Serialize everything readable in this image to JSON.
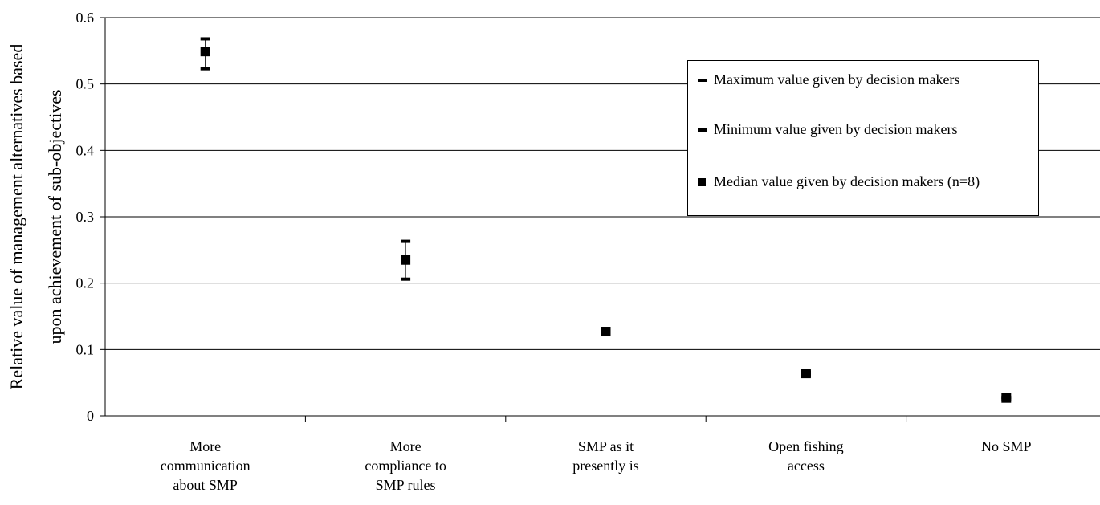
{
  "chart_data": {
    "type": "scatter",
    "title": "",
    "xlabel": "",
    "ylabel": [
      "Relative value of management alternatives based",
      "upon achievement of sub-objectives"
    ],
    "ylim": [
      0,
      0.6
    ],
    "yticks": [
      0,
      0.1,
      0.2,
      0.3,
      0.4,
      0.5,
      0.6
    ],
    "ytick_labels": [
      "0",
      "0.1",
      "0.2",
      "0.3",
      "0.4",
      "0.5",
      "0.6"
    ],
    "grid": true,
    "legend_position": "top-right",
    "categories": [
      "More communication about SMP",
      "More compliance to SMP rules",
      "SMP as it presently is",
      "Open fishing access",
      "No SMP"
    ],
    "category_label_lines": [
      [
        "More",
        "communication",
        "about SMP"
      ],
      [
        "More",
        "compliance to",
        "SMP rules"
      ],
      [
        "SMP as it",
        "presently is"
      ],
      [
        "Open fishing",
        "access"
      ],
      [
        "No SMP"
      ]
    ],
    "series": [
      {
        "name": "Maximum value given by decision makers",
        "values": [
          0.568,
          0.263,
          0.131,
          0.066,
          0.028
        ]
      },
      {
        "name": "Minimum value given by decision makers",
        "values": [
          0.523,
          0.206,
          0.123,
          0.062,
          0.025
        ]
      },
      {
        "name": "Median value given by decision makers (n=8)",
        "values": [
          0.549,
          0.235,
          0.127,
          0.064,
          0.027
        ]
      }
    ]
  },
  "legend": {
    "items": [
      {
        "marker": "dash",
        "label": "Maximum value given by decision makers"
      },
      {
        "marker": "dash",
        "label": "Minimum value given by decision makers"
      },
      {
        "marker": "square",
        "label": "Median value given by decision makers (n=8)"
      }
    ]
  }
}
